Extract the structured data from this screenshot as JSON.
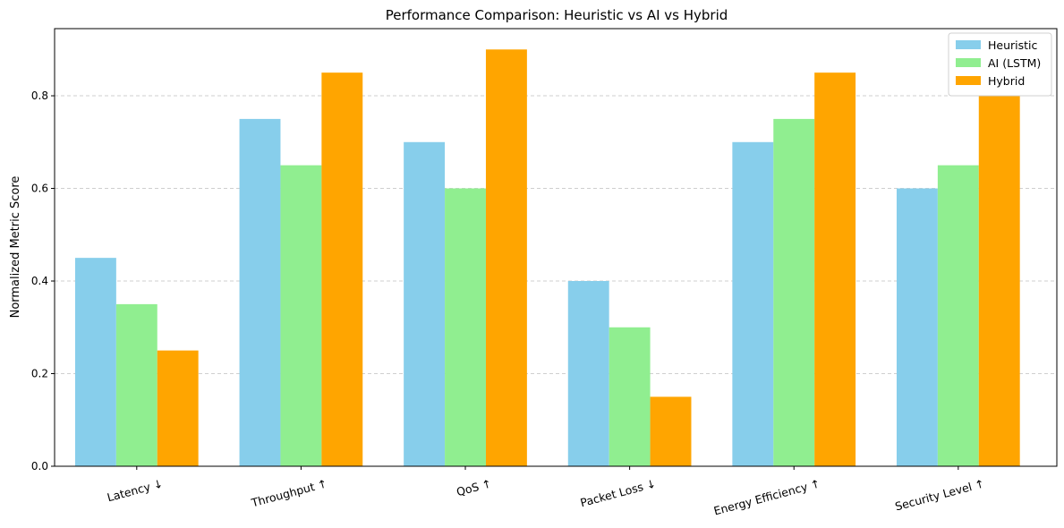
{
  "chart_data": {
    "type": "bar",
    "title": "Performance Comparison: Heuristic vs AI vs Hybrid",
    "xlabel": "",
    "ylabel": "Normalized Metric Score",
    "categories": [
      "Latency ↓",
      "Throughput ↑",
      "QoS ↑",
      "Packet Loss ↓",
      "Energy Efficiency ↑",
      "Security Level ↑"
    ],
    "series": [
      {
        "name": "Heuristic",
        "color": "#87ceeb",
        "values": [
          0.45,
          0.75,
          0.7,
          0.4,
          0.7,
          0.6
        ]
      },
      {
        "name": "AI (LSTM)",
        "color": "#90ee90",
        "values": [
          0.35,
          0.65,
          0.6,
          0.3,
          0.75,
          0.65
        ]
      },
      {
        "name": "Hybrid",
        "color": "#ffa500",
        "values": [
          0.25,
          0.85,
          0.9,
          0.15,
          0.85,
          0.8
        ]
      }
    ],
    "ylim": [
      0,
      0.945
    ],
    "yticks": [
      "0.0",
      "0.2",
      "0.4",
      "0.6",
      "0.8"
    ],
    "grid": "y dashed",
    "legend_position": "top-right",
    "xtick_rotation": "rotated"
  }
}
